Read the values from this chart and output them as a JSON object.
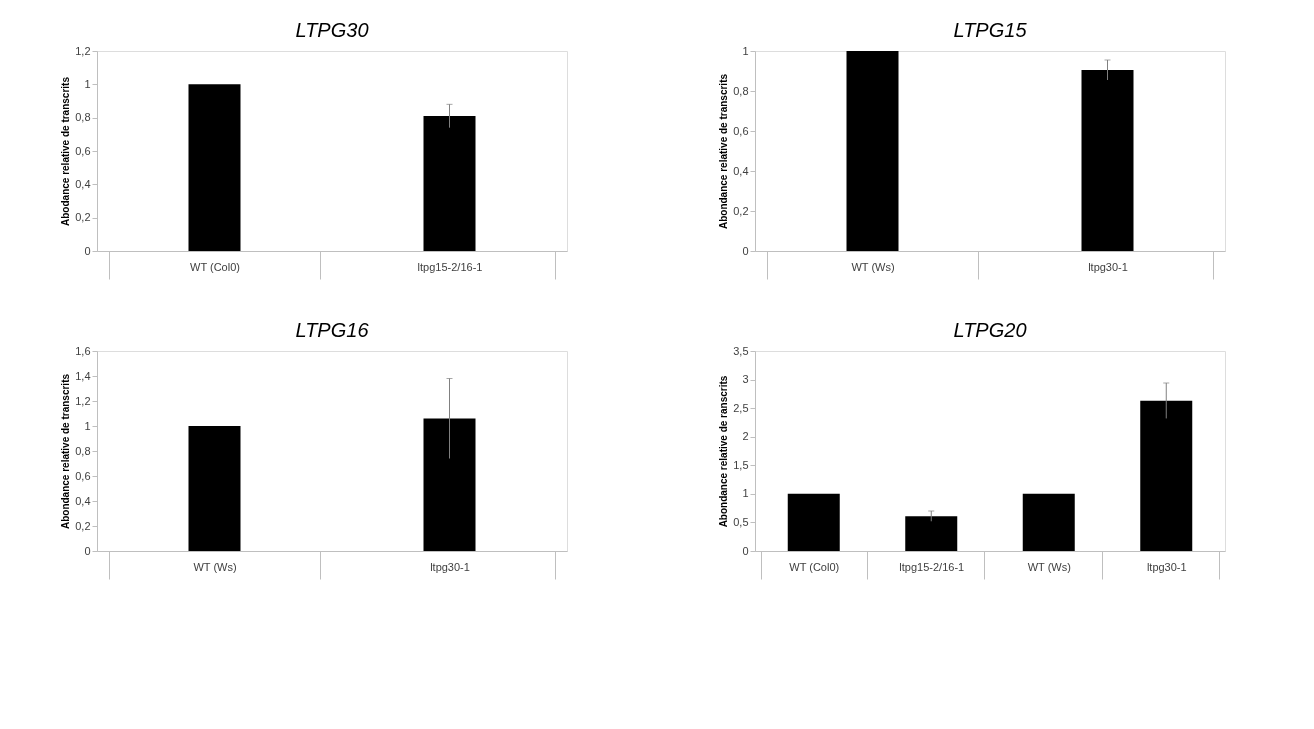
{
  "chart_data": [
    {
      "type": "bar",
      "title": "LTPG30",
      "ylabel": "Abodance relative de transcrits",
      "categories": [
        "WT (Col0)",
        "ltpg15-2/16-1"
      ],
      "series": [
        {
          "color": "#000000",
          "values": [
            1,
            0.81
          ],
          "errors": [
            null,
            0.07
          ]
        }
      ],
      "ylim": [
        0,
        1.2
      ],
      "yticks": [
        0,
        {
          "value": 0.2,
          "label": "0,2"
        },
        {
          "value": 0.4,
          "label": "0,4"
        },
        {
          "value": 0.6,
          "label": "0,6"
        },
        {
          "value": 0.8,
          "label": "0,8"
        },
        1,
        {
          "value": 1.2,
          "label": "1,2"
        }
      ],
      "grid": false
    },
    {
      "type": "bar",
      "title": "LTPG15",
      "ylabel": "Abondance relative de transcrits",
      "categories": [
        "WT (Ws)",
        "ltpg30-1"
      ],
      "series": [
        {
          "color": "#000000",
          "values": [
            1,
            0.905
          ],
          "errors": [
            null,
            0.05
          ]
        }
      ],
      "ylim": [
        0,
        1
      ],
      "yticks": [
        0,
        {
          "value": 0.2,
          "label": "0,2"
        },
        {
          "value": 0.4,
          "label": "0,4"
        },
        {
          "value": 0.6,
          "label": "0,6"
        },
        {
          "value": 0.8,
          "label": "0,8"
        },
        1
      ],
      "grid": false
    },
    {
      "type": "bar",
      "title": "LTPG16",
      "ylabel": "Abondance relative de transcrits",
      "categories": [
        "WT (Ws)",
        "ltpg30-1"
      ],
      "series": [
        {
          "color": "#000000",
          "values": [
            1,
            1.06
          ],
          "errors": [
            null,
            0.32
          ]
        }
      ],
      "ylim": [
        0,
        1.6
      ],
      "yticks": [
        0,
        {
          "value": 0.2,
          "label": "0,2"
        },
        {
          "value": 0.4,
          "label": "0,4"
        },
        {
          "value": 0.6,
          "label": "0,6"
        },
        {
          "value": 0.8,
          "label": "0,8"
        },
        1,
        {
          "value": 1.2,
          "label": "1,2"
        },
        {
          "value": 1.4,
          "label": "1,4"
        },
        {
          "value": 1.6,
          "label": "1,6"
        }
      ],
      "grid": false
    },
    {
      "type": "bar",
      "title": "LTPG20",
      "ylabel": "Abondance relative de ranscrits",
      "categories": [
        "WT (Col0)",
        "ltpg15-2/16-1",
        "WT (Ws)",
        "ltpg30-1"
      ],
      "series": [
        {
          "color": "#000000",
          "values": [
            1,
            0.61,
            1,
            2.63
          ],
          "errors": [
            null,
            0.09,
            null,
            0.31
          ]
        }
      ],
      "ylim": [
        0,
        3.5
      ],
      "yticks": [
        0,
        {
          "value": 0.5,
          "label": "0,5"
        },
        1,
        {
          "value": 1.5,
          "label": "1,5"
        },
        2,
        {
          "value": 2.5,
          "label": "2,5"
        },
        3,
        {
          "value": 3.5,
          "label": "3,5"
        }
      ],
      "grid": false
    }
  ]
}
